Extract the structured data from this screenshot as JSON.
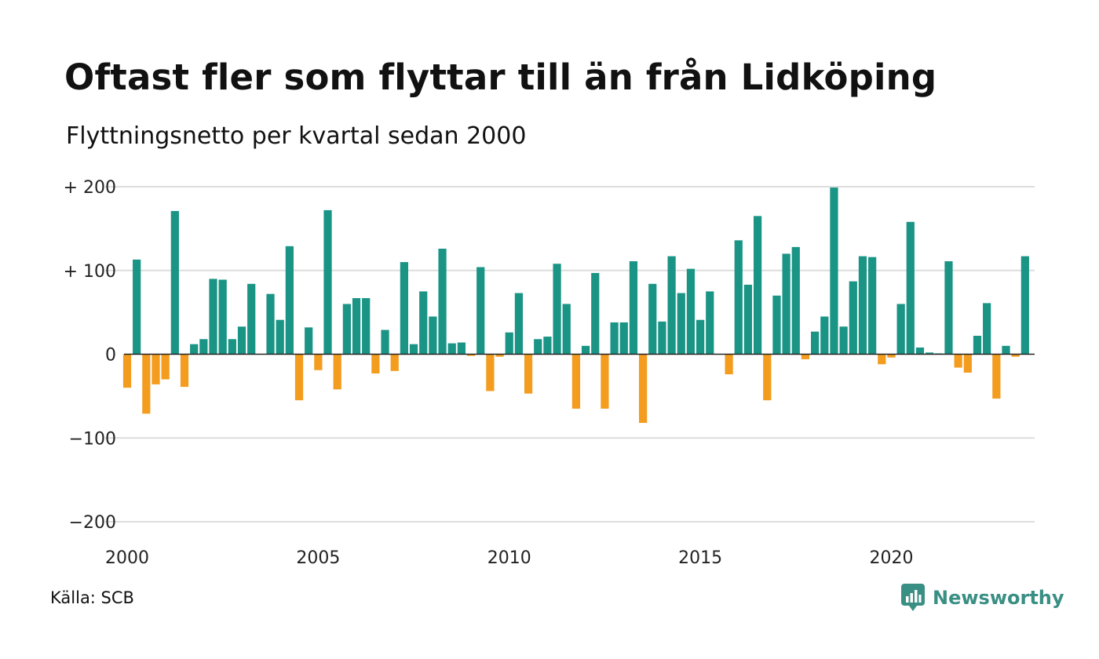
{
  "title": "Oftast fler som flyttar till än från Lidköping",
  "subtitle": "Flyttningsnetto per kvartal sedan 2000",
  "source": "Källa: SCB",
  "brand": "Newsworthy",
  "colors": {
    "positive": "#1a9485",
    "negative": "#f39c1e",
    "grid": "#dddddd",
    "zero_line": "#222222",
    "brand": "#3a8f84"
  },
  "chart_data": {
    "type": "bar",
    "title": "Oftast fler som flyttar till än från Lidköping",
    "subtitle": "Flyttningsnetto per kvartal sedan 2000",
    "xlabel": "",
    "ylabel": "",
    "ylim": [
      -200,
      200
    ],
    "xlim": [
      2000,
      2023.75
    ],
    "grid": true,
    "y_ticks": [
      {
        "value": 200,
        "label": "+ 200"
      },
      {
        "value": 100,
        "label": "+ 100"
      },
      {
        "value": 0,
        "label": "0"
      },
      {
        "value": -100,
        "label": "−100"
      },
      {
        "value": -200,
        "label": "−200"
      }
    ],
    "x_ticks": [
      {
        "value": 2000,
        "label": "2000"
      },
      {
        "value": 2005,
        "label": "2005"
      },
      {
        "value": 2010,
        "label": "2010"
      },
      {
        "value": 2015,
        "label": "2015"
      },
      {
        "value": 2020,
        "label": "2020"
      }
    ],
    "categories": [
      "2000K1",
      "2000K2",
      "2000K3",
      "2000K4",
      "2001K1",
      "2001K2",
      "2001K3",
      "2001K4",
      "2002K1",
      "2002K2",
      "2002K3",
      "2002K4",
      "2003K1",
      "2003K2",
      "2003K3",
      "2003K4",
      "2004K1",
      "2004K2",
      "2004K3",
      "2004K4",
      "2005K1",
      "2005K2",
      "2005K3",
      "2005K4",
      "2006K1",
      "2006K2",
      "2006K3",
      "2006K4",
      "2007K1",
      "2007K2",
      "2007K3",
      "2007K4",
      "2008K1",
      "2008K2",
      "2008K3",
      "2008K4",
      "2009K1",
      "2009K2",
      "2009K3",
      "2009K4",
      "2010K1",
      "2010K2",
      "2010K3",
      "2010K4",
      "2011K1",
      "2011K2",
      "2011K3",
      "2011K4",
      "2012K1",
      "2012K2",
      "2012K3",
      "2012K4",
      "2013K1",
      "2013K2",
      "2013K3",
      "2013K4",
      "2014K1",
      "2014K2",
      "2014K3",
      "2014K4",
      "2015K1",
      "2015K2",
      "2015K3",
      "2015K4",
      "2016K1",
      "2016K2",
      "2016K3",
      "2016K4",
      "2017K1",
      "2017K2",
      "2017K3",
      "2017K4",
      "2018K1",
      "2018K2",
      "2018K3",
      "2018K4",
      "2019K1",
      "2019K2",
      "2019K3",
      "2019K4",
      "2020K1",
      "2020K2",
      "2020K3",
      "2020K4",
      "2021K1",
      "2021K2",
      "2021K3",
      "2021K4",
      "2022K1",
      "2022K2",
      "2022K3",
      "2022K4",
      "2023K1",
      "2023K2",
      "2023K3",
      "2023K4"
    ],
    "values": [
      -40,
      113,
      -71,
      -36,
      -30,
      171,
      -39,
      12,
      18,
      90,
      89,
      18,
      33,
      84,
      0,
      72,
      41,
      129,
      -55,
      32,
      -19,
      172,
      -42,
      60,
      67,
      67,
      -23,
      29,
      -20,
      110,
      12,
      75,
      45,
      126,
      13,
      14,
      -2,
      104,
      -44,
      -3,
      26,
      73,
      -47,
      18,
      21,
      108,
      60,
      -65,
      10,
      97,
      -65,
      38,
      38,
      111,
      -82,
      84,
      39,
      117,
      73,
      102,
      41,
      75,
      0,
      -24,
      136,
      83,
      165,
      -55,
      70,
      120,
      128,
      -6,
      27,
      45,
      199,
      33,
      87,
      117,
      116,
      -12,
      -4,
      60,
      158,
      8,
      2,
      1,
      111,
      -16,
      -22,
      22,
      61,
      -53,
      10,
      -3,
      117,
      0
    ]
  }
}
